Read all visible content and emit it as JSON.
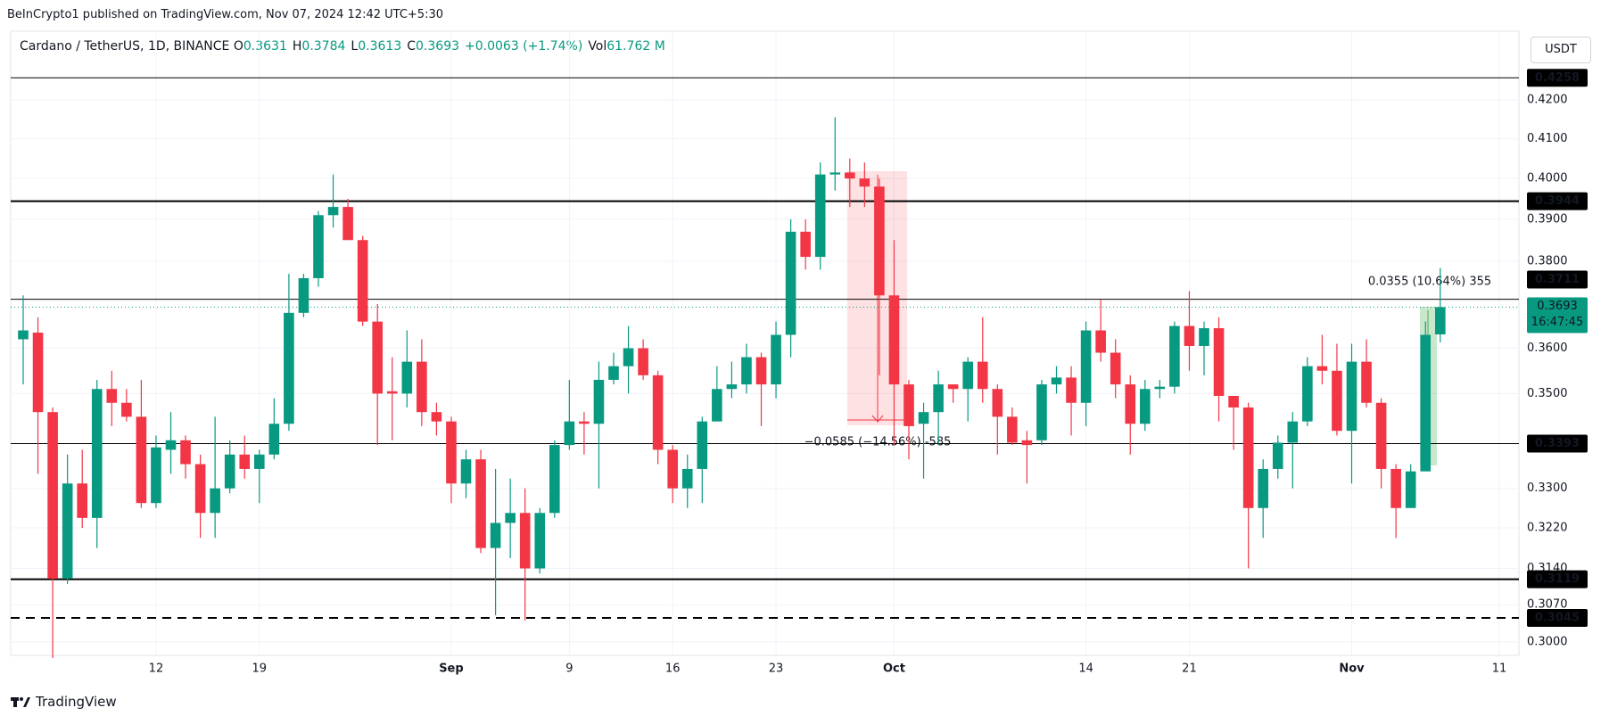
{
  "header": {
    "published": "BeInCrypto1 published on TradingView.com, Nov 07, 2024 12:42 UTC+5:30",
    "currency": "USDT",
    "brand": "TradingView"
  },
  "legend": {
    "symbol": "Cardano / TetherUS, 1D, BINANCE",
    "items": [
      {
        "key": "O",
        "value": "0.3631"
      },
      {
        "key": "H",
        "value": "0.3784"
      },
      {
        "key": "L",
        "value": "0.3613"
      },
      {
        "key": "C",
        "value": "0.3693"
      }
    ],
    "change": "+0.0063 (+1.74%)",
    "volume_key": "Vol",
    "volume": "61.762 M"
  },
  "chart_data": {
    "type": "candlestick",
    "log_scale": true,
    "grid": true,
    "up_color": "#089981",
    "down_color": "#f23645",
    "categories": [
      null,
      null,
      null,
      null,
      null,
      null,
      null,
      null,
      null,
      "12",
      null,
      null,
      null,
      null,
      null,
      null,
      "19",
      null,
      null,
      null,
      null,
      null,
      null,
      null,
      null,
      null,
      null,
      null,
      null,
      "Sep",
      null,
      null,
      null,
      null,
      null,
      null,
      null,
      "9",
      null,
      null,
      null,
      null,
      null,
      null,
      "16",
      null,
      null,
      null,
      null,
      null,
      null,
      "23",
      null,
      null,
      null,
      null,
      null,
      null,
      null,
      "Oct",
      null,
      null,
      null,
      null,
      null,
      null,
      null,
      null,
      null,
      null,
      null,
      null,
      "14",
      null,
      null,
      null,
      null,
      null,
      null,
      "21",
      null,
      null,
      null,
      null,
      null,
      null,
      null,
      null,
      null,
      null,
      "Nov",
      null,
      null,
      null,
      null,
      null,
      null,
      null,
      null,
      null,
      "11"
    ],
    "open": [
      0.362,
      0.3635,
      0.346,
      0.312,
      0.331,
      0.324,
      0.351,
      0.348,
      0.345,
      0.327,
      0.338,
      0.34,
      0.335,
      0.325,
      0.33,
      0.337,
      0.334,
      0.337,
      0.3435,
      0.368,
      0.376,
      0.391,
      0.393,
      0.385,
      0.366,
      0.3505,
      0.35,
      0.357,
      0.346,
      0.344,
      0.331,
      0.336,
      0.318,
      0.323,
      0.325,
      0.314,
      0.325,
      0.339,
      0.344,
      0.3435,
      0.353,
      0.356,
      0.36,
      0.354,
      0.338,
      0.33,
      0.334,
      0.344,
      0.351,
      0.352,
      0.358,
      0.352,
      0.363,
      0.387,
      0.381,
      0.401,
      0.4015,
      0.4,
      0.398,
      0.372,
      0.352,
      0.3435,
      0.346,
      0.352,
      0.351,
      0.357,
      0.351,
      0.345,
      0.34,
      0.34,
      0.352,
      0.3535,
      0.348,
      0.364,
      0.359,
      0.352,
      0.3435,
      0.351,
      0.3515,
      0.365,
      0.3605,
      0.3645,
      0.3495,
      0.347,
      0.326,
      0.334,
      0.3395,
      0.344,
      0.356,
      0.355,
      0.342,
      0.357,
      0.348,
      0.334,
      0.326,
      0.3335,
      0.3631,
      null,
      null,
      null,
      null
    ],
    "high": [
      0.372,
      0.367,
      0.347,
      0.337,
      0.338,
      0.353,
      0.355,
      0.351,
      0.353,
      0.341,
      0.346,
      0.341,
      0.337,
      0.345,
      0.34,
      0.341,
      0.338,
      0.349,
      0.377,
      0.377,
      0.392,
      0.401,
      0.395,
      0.386,
      0.37,
      0.358,
      0.364,
      0.362,
      0.348,
      0.345,
      0.338,
      0.338,
      0.334,
      0.332,
      0.33,
      0.326,
      0.34,
      0.353,
      0.346,
      0.357,
      0.359,
      0.365,
      0.362,
      0.355,
      0.339,
      0.337,
      0.345,
      0.356,
      0.357,
      0.361,
      0.359,
      0.366,
      0.39,
      0.39,
      0.404,
      0.4155,
      0.405,
      0.404,
      0.4,
      0.385,
      0.353,
      0.348,
      0.355,
      0.352,
      0.358,
      0.367,
      0.352,
      0.347,
      0.342,
      0.353,
      0.356,
      0.356,
      0.366,
      0.371,
      0.362,
      0.354,
      0.353,
      0.353,
      0.366,
      0.373,
      0.366,
      0.367,
      0.349,
      0.348,
      0.336,
      0.341,
      0.346,
      0.358,
      0.363,
      0.361,
      0.361,
      0.362,
      0.349,
      0.335,
      0.335,
      0.366,
      0.3784,
      null,
      null,
      null,
      null
    ],
    "low": [
      0.352,
      0.333,
      0.297,
      0.311,
      0.322,
      0.318,
      0.343,
      0.344,
      0.326,
      0.326,
      0.333,
      0.332,
      0.32,
      0.32,
      0.329,
      0.332,
      0.327,
      0.336,
      0.342,
      0.367,
      0.374,
      0.388,
      0.385,
      0.365,
      0.339,
      0.34,
      0.347,
      0.343,
      0.341,
      0.327,
      0.328,
      0.317,
      0.305,
      0.316,
      0.304,
      0.313,
      0.324,
      0.338,
      0.337,
      0.33,
      0.352,
      0.35,
      0.353,
      0.335,
      0.327,
      0.326,
      0.327,
      0.344,
      0.349,
      0.35,
      0.343,
      0.349,
      0.358,
      0.378,
      0.378,
      0.397,
      0.393,
      0.393,
      0.354,
      0.339,
      0.336,
      0.332,
      0.339,
      0.348,
      0.344,
      0.348,
      0.337,
      0.339,
      0.331,
      0.339,
      0.35,
      0.341,
      0.343,
      0.357,
      0.349,
      0.337,
      0.342,
      0.349,
      0.35,
      0.355,
      0.354,
      0.344,
      0.338,
      0.314,
      0.32,
      0.332,
      0.33,
      0.343,
      0.352,
      0.341,
      0.331,
      0.347,
      0.33,
      0.32,
      0.326,
      0.334,
      0.3613,
      null,
      null,
      null,
      null
    ],
    "close": [
      0.364,
      0.346,
      0.312,
      0.331,
      0.324,
      0.351,
      0.348,
      0.345,
      0.327,
      0.3385,
      0.34,
      0.335,
      0.325,
      0.33,
      0.337,
      0.334,
      0.337,
      0.3435,
      0.368,
      0.376,
      0.391,
      0.393,
      0.385,
      0.366,
      0.35,
      0.35,
      0.357,
      0.346,
      0.344,
      0.331,
      0.336,
      0.318,
      0.323,
      0.325,
      0.314,
      0.325,
      0.339,
      0.344,
      0.3435,
      0.353,
      0.356,
      0.36,
      0.354,
      0.338,
      0.33,
      0.334,
      0.344,
      0.351,
      0.352,
      0.358,
      0.352,
      0.363,
      0.387,
      0.381,
      0.401,
      0.4015,
      0.4,
      0.398,
      0.372,
      0.352,
      0.343,
      0.346,
      0.352,
      0.351,
      0.357,
      0.351,
      0.345,
      0.3395,
      0.339,
      0.352,
      0.3535,
      0.348,
      0.364,
      0.359,
      0.352,
      0.3435,
      0.351,
      0.3515,
      0.365,
      0.3605,
      0.3645,
      0.3495,
      0.347,
      0.326,
      0.334,
      0.3395,
      0.344,
      0.356,
      0.355,
      0.342,
      0.357,
      0.348,
      0.334,
      0.326,
      0.3335,
      0.363,
      0.3693,
      null,
      null,
      null,
      null
    ],
    "ylim": [
      0.2975,
      0.4383
    ],
    "yticks": [
      {
        "value": 0.3,
        "label": "0.3000"
      },
      {
        "value": 0.307,
        "label": "0.3070"
      },
      {
        "value": 0.314,
        "label": "0.3140"
      },
      {
        "value": 0.322,
        "label": "0.3220"
      },
      {
        "value": 0.33,
        "label": "0.3300"
      },
      {
        "value": 0.35,
        "label": "0.3500"
      },
      {
        "value": 0.36,
        "label": "0.3600"
      },
      {
        "value": 0.38,
        "label": "0.3800"
      },
      {
        "value": 0.39,
        "label": "0.3900"
      },
      {
        "value": 0.4,
        "label": "0.4000"
      },
      {
        "value": 0.41,
        "label": "0.4100"
      },
      {
        "value": 0.42,
        "label": "0.4200"
      }
    ],
    "levels": [
      {
        "value": 0.4258,
        "style": "solid",
        "width": 1
      },
      {
        "value": 0.3944,
        "style": "solid",
        "width": 2
      },
      {
        "value": 0.3711,
        "style": "solid",
        "width": 1
      },
      {
        "value": 0.3393,
        "style": "solid",
        "width": 1
      },
      {
        "value": 0.3119,
        "style": "solid",
        "width": 2
      },
      {
        "value": 0.3045,
        "style": "dashed",
        "width": 2
      }
    ],
    "last_price": {
      "value": 0.3693,
      "countdown": "16:47:45"
    },
    "annotations": [
      "−0.0585 (−14.56%) -585",
      "0.0355 (10.64%) 355"
    ]
  }
}
